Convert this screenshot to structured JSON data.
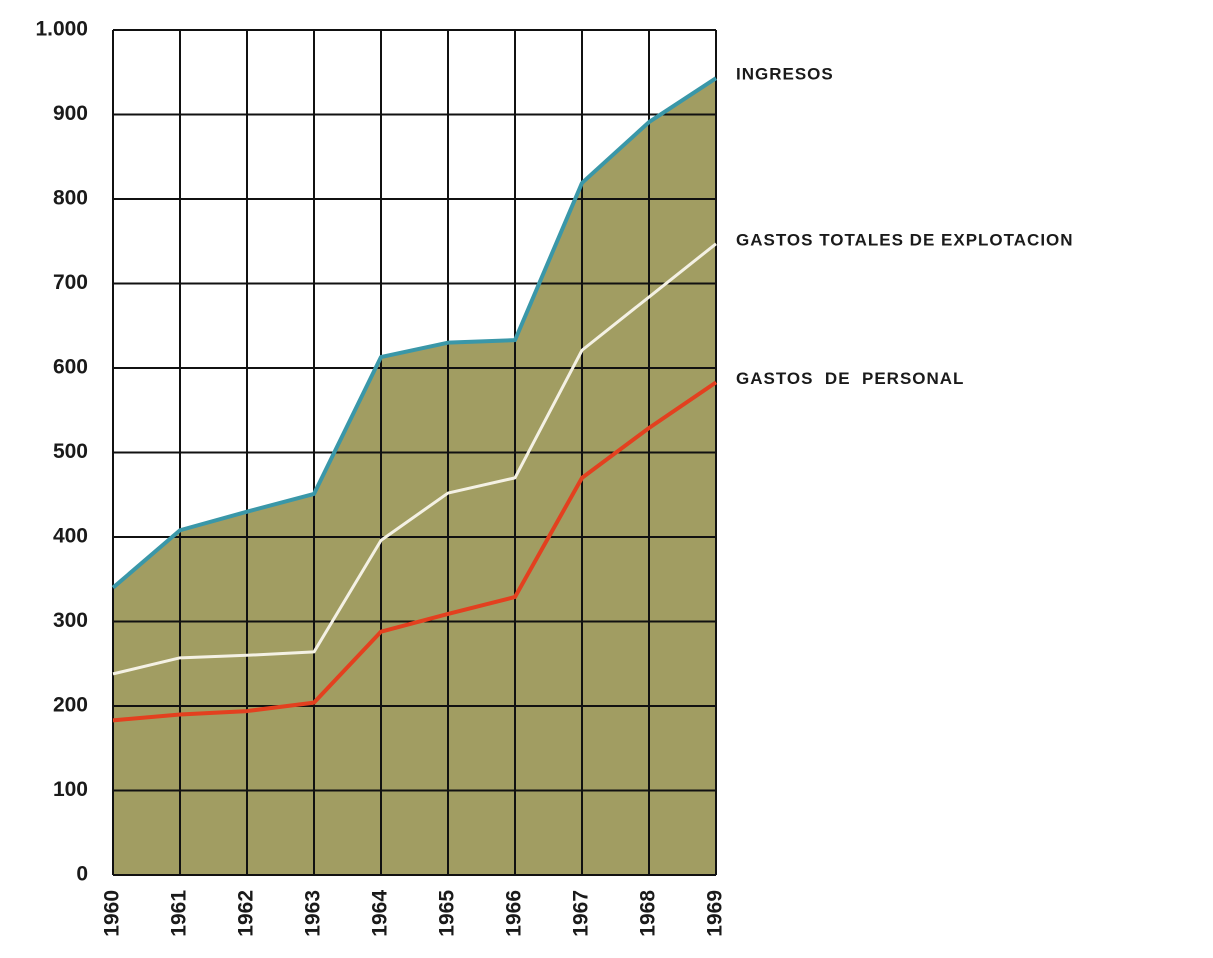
{
  "chart_data": {
    "type": "area-line",
    "x": [
      1960,
      1961,
      1962,
      1963,
      1964,
      1965,
      1966,
      1967,
      1968,
      1969
    ],
    "xlim": [
      1960,
      1969
    ],
    "xticks": [
      1960,
      1961,
      1962,
      1963,
      1964,
      1965,
      1966,
      1967,
      1968,
      1969
    ],
    "ylim": [
      0,
      1000
    ],
    "yticks": [
      0,
      100,
      200,
      300,
      400,
      500,
      600,
      700,
      800,
      900,
      {
        "value": 1000,
        "label": "1.000"
      }
    ],
    "grid": true,
    "series": [
      {
        "name": "INGRESOS",
        "color": "#3a97a8",
        "fill": "#a19d62",
        "values": [
          340,
          408,
          430,
          451,
          613,
          630,
          633,
          819,
          891,
          943
        ]
      },
      {
        "name": "GASTOS TOTALES DE EXPLOTACION",
        "color": "#f4f1e4",
        "values": [
          238,
          257,
          260,
          264,
          396,
          452,
          470,
          621,
          684,
          747
        ]
      },
      {
        "name": "GASTOS  DE  PERSONAL",
        "color": "#e3401f",
        "values": [
          183,
          190,
          194,
          204,
          288,
          309,
          329,
          470,
          529,
          583
        ]
      }
    ]
  }
}
